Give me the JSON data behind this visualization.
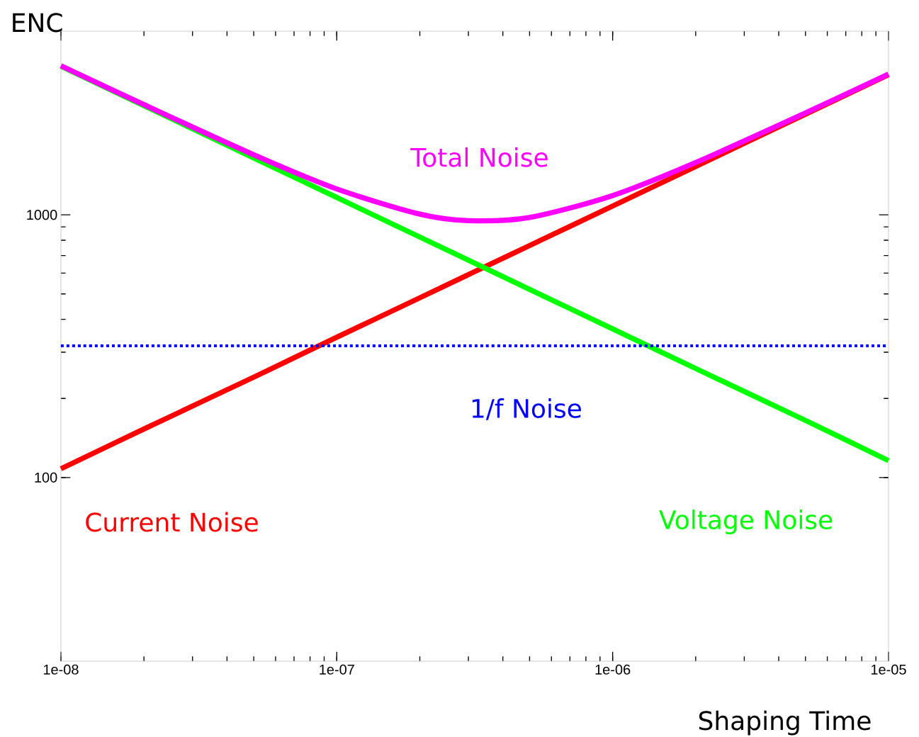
{
  "chart_data": {
    "type": "line",
    "xlabel": "Shaping Time",
    "ylabel": "ENC",
    "log": "xy",
    "grid": false,
    "xlim": [
      1e-08,
      1e-05
    ],
    "ylim": [
      20,
      5000
    ],
    "xticks": [
      {
        "value": 1e-08,
        "label": "1e-08"
      },
      {
        "value": 1e-07,
        "label": "1e-07"
      },
      {
        "value": 1e-06,
        "label": "1e-06"
      },
      {
        "value": 1e-05,
        "label": "1e-05"
      }
    ],
    "yticks": [
      100,
      1000
    ],
    "x": [
      1e-08,
      2e-08,
      5e-08,
      1e-07,
      2e-07,
      3e-07,
      5e-07,
      1e-06,
      2e-06,
      5e-06,
      1e-05
    ],
    "series": [
      {
        "name": "Current Noise",
        "color": "#ff0000",
        "values": [
          108,
          153,
          241,
          342,
          483,
          592,
          764,
          1080,
          1527,
          2415,
          3415
        ]
      },
      {
        "name": "Voltage Noise",
        "color": "#00ff00",
        "values": [
          3680,
          2602,
          1646,
          1164,
          823,
          672,
          520,
          368,
          260,
          165,
          116
        ]
      },
      {
        "name": "1/f Noise",
        "color": "#0000ff",
        "line_style": "dotted",
        "values": [
          317,
          317,
          317,
          317,
          317,
          317,
          317,
          317,
          317,
          317,
          317
        ]
      },
      {
        "name": "Total Noise",
        "color": "#ff00ff",
        "values": [
          3695,
          2626,
          1693,
          1254,
          1006,
          950,
          977,
          1184,
          1581,
          2441,
          3432
        ]
      }
    ]
  }
}
